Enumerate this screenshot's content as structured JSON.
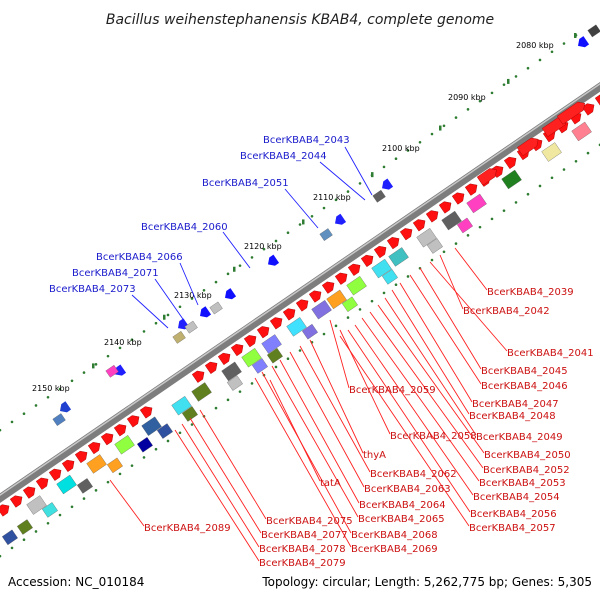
{
  "title": "Bacillus weihenstephanensis KBAB4, complete genome",
  "accession": "Accession: NC_010184",
  "summary": "Topology: circular; Length: 5,262,775 bp; Genes: 5,305",
  "colors": {
    "backbone": "#777777",
    "forward_gene": "#ff0000",
    "reverse_gene": "#0000ff",
    "label_red": "#cc0000",
    "label_blue": "#0000cc",
    "tick": "#2e7d32"
  },
  "scale_ticks": [
    "2080 kbp",
    "2090 kbp",
    "2100 kbp",
    "2110 kbp",
    "2120 kbp",
    "2130 kbp",
    "2140 kbp",
    "2150 kbp"
  ],
  "blue_labels": [
    "BcerKBAB4_2043",
    "BcerKBAB4_2044",
    "BcerKBAB4_2051",
    "BcerKBAB4_2060",
    "BcerKBAB4_2066",
    "BcerKBAB4_2071",
    "BcerKBAB4_2073"
  ],
  "red_labels": [
    "BcerKBAB4_2039",
    "BcerKBAB4_2042",
    "BcerKBAB4_2041",
    "BcerKBAB4_2045",
    "BcerKBAB4_2046",
    "BcerKBAB4_2047",
    "BcerKBAB4_2048",
    "BcerKBAB4_2059",
    "BcerKBAB4_2049",
    "BcerKBAB4_2058",
    "BcerKBAB4_2050",
    "thyA",
    "BcerKBAB4_2052",
    "BcerKBAB4_2062",
    "BcerKBAB4_2053",
    "tatA",
    "BcerKBAB4_2063",
    "BcerKBAB4_2054",
    "BcerKBAB4_2064",
    "BcerKBAB4_2065",
    "BcerKBAB4_2056",
    "BcerKBAB4_2089",
    "BcerKBAB4_2075",
    "BcerKBAB4_2057",
    "BcerKBAB4_2077",
    "BcerKBAB4_2068",
    "BcerKBAB4_2078",
    "BcerKBAB4_2069",
    "BcerKBAB4_2079"
  ]
}
